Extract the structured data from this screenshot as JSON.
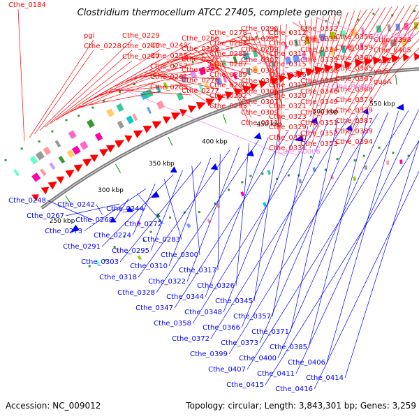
{
  "title": "Clostridium thermocellum ATCC 27405, complete genome",
  "accession": "Accession: NC_009012",
  "topology": "Topology: circular; Length: 3,843,301 bp; Genes: 3,259",
  "colors": {
    "forward": "#ff0000",
    "reverse": "#0000ff",
    "rna": "#ee82ee",
    "backbone": "#808080",
    "tick": "#008000"
  },
  "ticks": [
    "250 kbp",
    "300 kbp",
    "350 kbp",
    "400 kbp",
    "450 kbp",
    "500 kbp",
    "550 kbp"
  ],
  "forward_labels": [
    "Cthe_0184",
    "pgi",
    "Cthe_0228",
    "Cthe_0229",
    "Cthe_0240",
    "Cthe_0247",
    "Cthe_0249",
    "Cthe_0255",
    "Cthe_0257",
    "Cthe_0261",
    "Cthe_0265",
    "Cthe_0266",
    "Cthe_0269",
    "Cthe_0271",
    "Cthe_0275",
    "Cthe_0276",
    "Cthe_0277",
    "Cthe_0278",
    "Cthe_0282",
    "Cthe_0285",
    "Cthe_0287",
    "Cthe_0289",
    "Cthe_0290",
    "Cthe_0292",
    "Cthe_0293",
    "Cthe_0296",
    "Cthe_0297",
    "Cthe_0299",
    "Cthe_0302",
    "Cthe_0304",
    "Cthe_0305",
    "Cthe_0306",
    "Cthe_0307",
    "Cthe_0309",
    "Cthe_0311",
    "Cthe_0312",
    "Cthe_0313",
    "Cthe_0314",
    "Cthe_0315",
    "Cthe_0316",
    "Cthe_0319",
    "Cthe_0320",
    "Cthe_0321",
    "Cthe_0323",
    "Cthe_0329",
    "Cthe_0330",
    "Cthe_0331",
    "Cthe_0332",
    "Cthe_0333",
    "Cthe_0334",
    "Cthe_0335",
    "Cthe_0338",
    "Cthe_0343",
    "Cthe_0346",
    "Cthe_0349",
    "Cthe_0350",
    "Cthe_0351",
    "Cthe_0352",
    "Cthe_0353",
    "Cthe_0356",
    "Cthe_0359",
    "Cthe_0360",
    "Cthe_0365",
    "Cthe_0367",
    "Cthe_0368",
    "Cthe_0374",
    "Cthe_0379",
    "Cthe_0387",
    "Cthe_0389",
    "Cthe_0394",
    "Cthe_0398",
    "Cthe_0405",
    "nadE",
    "valS",
    "guaA"
  ],
  "rna_labels": [
    "Cthe_R0008",
    "Cthe_R0007",
    "Cthe_R0006"
  ],
  "reverse_labels": [
    "Cthe_0248",
    "Cthe_0242",
    "Cthe_0244",
    "Cthe_0267",
    "Cthe_0268",
    "Cthe_0272",
    "Cthe_0273",
    "Cthe_0274",
    "Cthe_0283",
    "Cthe_0291",
    "Cthe_0295",
    "Cthe_0300",
    "Cthe_0303",
    "Cthe_0310",
    "Cthe_0317",
    "Cthe_0318",
    "Cthe_0322",
    "Cthe_0326",
    "Cthe_0328",
    "Cthe_0344",
    "Cthe_0345",
    "Cthe_0347",
    "Cthe_0348",
    "Cthe_0357",
    "Cthe_0358",
    "Cthe_0366",
    "Cthe_0371",
    "Cthe_0372",
    "Cthe_0373",
    "Cthe_0385",
    "Cthe_0399",
    "Cthe_0400",
    "Cthe_0406",
    "Cthe_0407",
    "Cthe_0411",
    "Cthe_0414",
    "Cthe_0415",
    "Cthe_0416"
  ]
}
